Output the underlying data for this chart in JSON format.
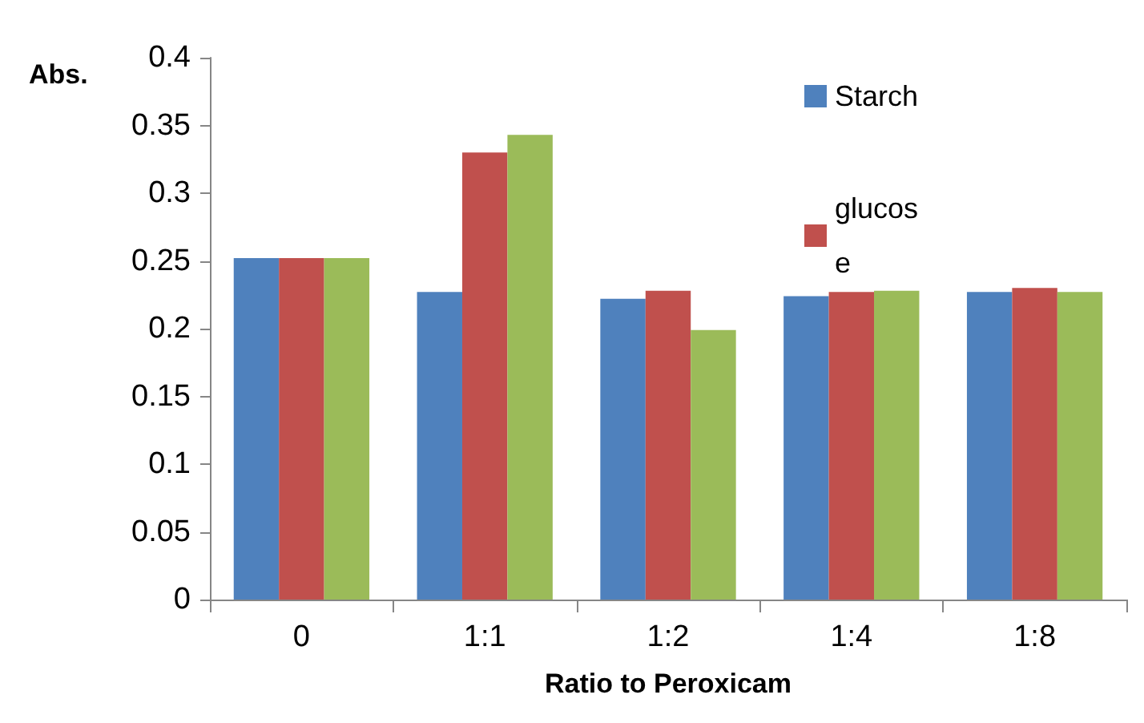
{
  "chart_data": {
    "type": "bar",
    "xlabel": "Ratio to Peroxicam",
    "ylabel": "Abs.",
    "categories": [
      "0",
      "1:1",
      "1:2",
      "1:4",
      "1:8"
    ],
    "series": [
      {
        "name": "Starch",
        "color": "#4f81bd",
        "values": [
          0.252,
          0.227,
          0.222,
          0.224,
          0.227
        ]
      },
      {
        "name": "glucose",
        "color": "#c0504d",
        "values": [
          0.252,
          0.33,
          0.228,
          0.227,
          0.23
        ]
      },
      {
        "color": "#9bbb59",
        "values": [
          0.252,
          0.343,
          0.199,
          0.228,
          0.227
        ]
      }
    ],
    "ylim": [
      0,
      0.4
    ],
    "yticks": [
      0,
      0.05,
      0.1,
      0.15,
      0.2,
      0.25,
      0.3,
      0.35,
      0.4
    ],
    "grid": false,
    "legend": "top right"
  }
}
